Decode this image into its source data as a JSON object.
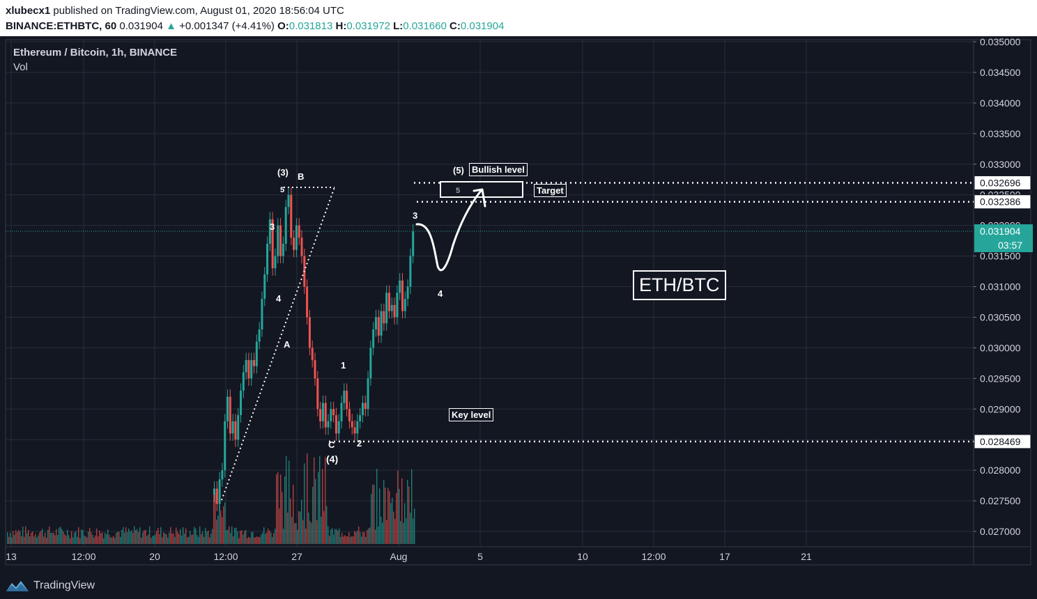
{
  "header": {
    "user": "xlubecx1",
    "published": " published on TradingView.com, August 01, 2020 18:56:04 UTC",
    "symbol": "BINANCE:ETHBTC, 60",
    "last": "0.031904",
    "change": "+0.001347 (+4.41%)",
    "o_label": "O:",
    "o": "0.031813",
    "h_label": "H:",
    "h": "0.031972",
    "l_label": "L:",
    "l": "0.031660",
    "c_label": "C:",
    "c": "0.031904"
  },
  "legend": {
    "title": "Ethereum / Bitcoin, 1h, BINANCE",
    "vol": "Vol"
  },
  "annotations": {
    "bullish_level": "Bullish level",
    "target": "Target",
    "key_level": "Key level",
    "pair_tag": "ETH/BTC",
    "waves": {
      "w3_top": "(3)",
      "wB": "B",
      "w5_small": "5",
      "w3_inner": "3",
      "w4_inner": "4",
      "wA": "A",
      "w1": "1",
      "wC": "C",
      "w4_paren": "(4)",
      "w2": "2",
      "w3_right": "3",
      "w4_proj": "4",
      "w5_proj": "(5)",
      "w5_box": "5"
    }
  },
  "price_scale": {
    "last_tag": "0.031904",
    "countdown": "03:57",
    "level_tags": [
      "0.032696",
      "0.032386",
      "0.028469"
    ]
  },
  "footer": {
    "brand": "TradingView"
  },
  "colors": {
    "bg": "#131722",
    "up": "#26a69a",
    "down": "#ef5350",
    "grid": "#2a2e39",
    "last_line": "#26a69a"
  },
  "chart_data": {
    "type": "candlestick",
    "title": "Ethereum / Bitcoin, 1h, BINANCE",
    "x_ticks": [
      "13",
      "12:00",
      "20",
      "12:00",
      "27",
      "Aug",
      "5",
      "10",
      "12:00",
      "17",
      "21"
    ],
    "y_ticks": [
      "0.035000",
      "0.034500",
      "0.034000",
      "0.033500",
      "0.033000",
      "0.032500",
      "0.032000",
      "0.031500",
      "0.031000",
      "0.030500",
      "0.030000",
      "0.029500",
      "0.029000",
      "0.028500",
      "0.028000",
      "0.027500",
      "0.027000"
    ],
    "ylim": [
      0.02675,
      0.0352
    ],
    "last_price": 0.031904,
    "horizontal_levels": [
      0.032696,
      0.032386,
      0.028469
    ],
    "price_path": [
      [
        0.0276,
        0
      ],
      [
        0.0277,
        3
      ],
      [
        0.02745,
        6
      ],
      [
        0.02785,
        9
      ],
      [
        0.028,
        12
      ],
      [
        0.0288,
        15
      ],
      [
        0.0292,
        18
      ],
      [
        0.0286,
        21
      ],
      [
        0.0288,
        24
      ],
      [
        0.0285,
        27
      ],
      [
        0.0289,
        30
      ],
      [
        0.0293,
        33
      ],
      [
        0.0296,
        36
      ],
      [
        0.0298,
        39
      ],
      [
        0.0295,
        42
      ],
      [
        0.0298,
        45
      ],
      [
        0.0297,
        48
      ],
      [
        0.0301,
        51
      ],
      [
        0.0303,
        54
      ],
      [
        0.0308,
        57
      ],
      [
        0.0312,
        60
      ],
      [
        0.0317,
        63
      ],
      [
        0.0321,
        66
      ],
      [
        0.0313,
        69
      ],
      [
        0.0315,
        72
      ],
      [
        0.032,
        75
      ],
      [
        0.0315,
        78
      ],
      [
        0.0317,
        81
      ],
      [
        0.0323,
        84
      ],
      [
        0.0325,
        87
      ],
      [
        0.0318,
        90
      ],
      [
        0.0316,
        93
      ],
      [
        0.032,
        96
      ],
      [
        0.0318,
        99
      ],
      [
        0.0315,
        102
      ],
      [
        0.031,
        105
      ],
      [
        0.0305,
        108
      ],
      [
        0.03,
        111
      ],
      [
        0.0298,
        114
      ],
      [
        0.0295,
        117
      ],
      [
        0.029,
        120
      ],
      [
        0.0288,
        123
      ],
      [
        0.0291,
        126
      ],
      [
        0.0287,
        129
      ],
      [
        0.0288,
        132
      ],
      [
        0.029,
        135
      ],
      [
        0.0289,
        138
      ],
      [
        0.0286,
        141
      ],
      [
        0.0288,
        144
      ],
      [
        0.0291,
        147
      ],
      [
        0.0293,
        150
      ],
      [
        0.029,
        153
      ],
      [
        0.0288,
        156
      ],
      [
        0.0287,
        159
      ],
      [
        0.0286,
        162
      ],
      [
        0.0288,
        165
      ],
      [
        0.0289,
        168
      ],
      [
        0.0291,
        171
      ],
      [
        0.029,
        174
      ],
      [
        0.0295,
        177
      ],
      [
        0.03,
        180
      ],
      [
        0.0303,
        183
      ],
      [
        0.0305,
        186
      ],
      [
        0.0302,
        189
      ],
      [
        0.0306,
        192
      ],
      [
        0.0304,
        195
      ],
      [
        0.0309,
        198
      ],
      [
        0.0306,
        201
      ],
      [
        0.0307,
        204
      ],
      [
        0.0305,
        207
      ],
      [
        0.0309,
        210
      ],
      [
        0.0311,
        213
      ],
      [
        0.0306,
        216
      ],
      [
        0.0308,
        219
      ],
      [
        0.031,
        222
      ],
      [
        0.0315,
        225
      ],
      [
        0.0319,
        228
      ]
    ],
    "projection": [
      [
        0.03195,
        0
      ],
      [
        0.0318,
        1
      ],
      [
        0.0313,
        2
      ],
      [
        0.0316,
        3
      ],
      [
        0.0322,
        4
      ],
      [
        0.0327,
        5
      ],
      [
        0.0324,
        6
      ]
    ]
  }
}
